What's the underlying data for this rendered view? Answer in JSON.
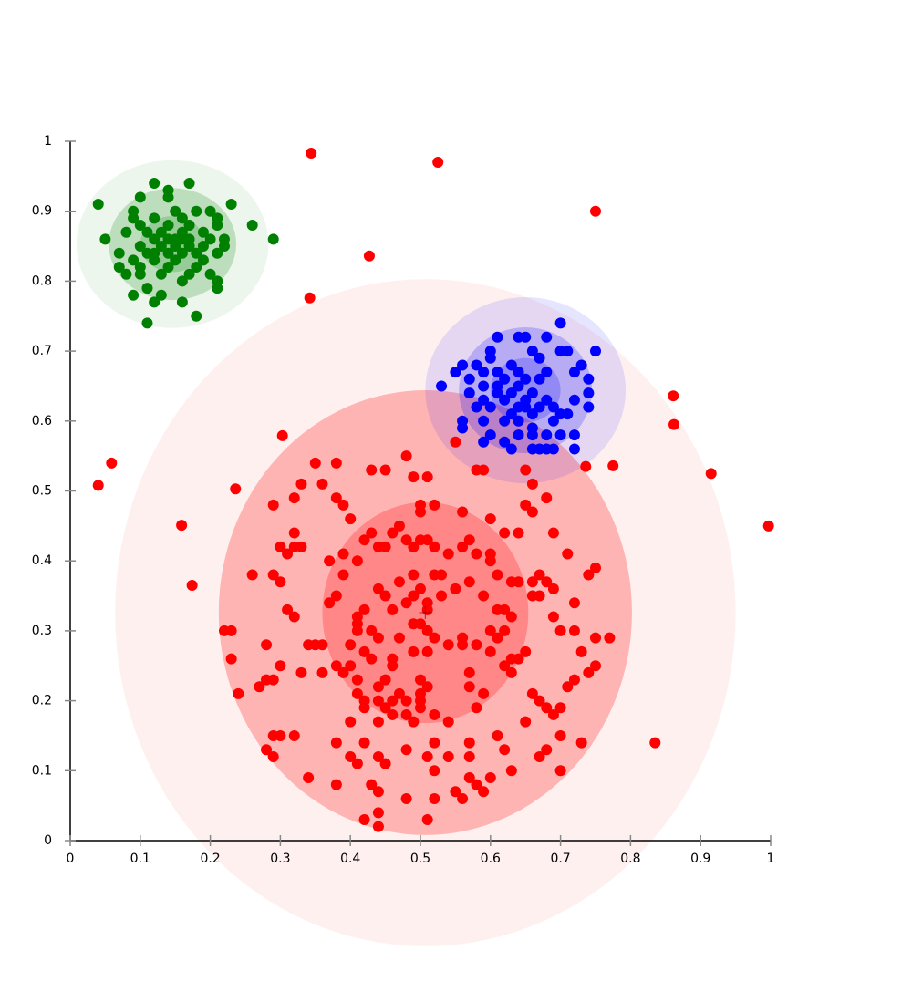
{
  "chart_data": {
    "type": "scatter",
    "xlim": [
      0,
      1
    ],
    "ylim": [
      0,
      1
    ],
    "xticks": [
      0,
      0.1,
      0.2,
      0.3,
      0.4,
      0.5,
      0.6,
      0.7,
      0.8,
      0.9,
      1
    ],
    "yticks": [
      0,
      0.1,
      0.2,
      0.3,
      0.4,
      0.5,
      0.6,
      0.7,
      0.8,
      0.9,
      1
    ],
    "series": [
      {
        "color": "#ff0000",
        "ellipses": {
          "center": [
            0.507,
            0.326
          ],
          "radii": [
            [
              0.147,
              0.158
            ],
            [
              0.295,
              0.318
            ],
            [
              0.443,
              0.477
            ]
          ],
          "opacity": [
            0.25,
            0.25,
            0.06
          ]
        },
        "x": [
          0.35,
          0.38,
          0.43,
          0.45,
          0.48,
          0.49,
          0.51,
          0.55,
          0.58,
          0.59,
          0.65,
          0.66,
          0.68,
          0.65,
          0.66,
          0.64,
          0.62,
          0.69,
          0.71,
          0.74,
          0.75,
          0.72,
          0.69,
          0.7,
          0.72,
          0.73,
          0.75,
          0.77,
          0.74,
          0.75,
          0.72,
          0.71,
          0.7,
          0.68,
          0.69,
          0.67,
          0.66,
          0.65,
          0.68,
          0.67,
          0.7,
          0.73,
          0.7,
          0.62,
          0.61,
          0.63,
          0.6,
          0.58,
          0.59,
          0.57,
          0.57,
          0.57,
          0.52,
          0.51,
          0.52,
          0.48,
          0.51,
          0.44,
          0.44,
          0.42,
          0.44,
          0.43,
          0.38,
          0.34,
          0.41,
          0.4,
          0.45,
          0.44,
          0.42,
          0.38,
          0.32,
          0.29,
          0.28,
          0.29,
          0.3,
          0.36,
          0.33,
          0.3,
          0.28,
          0.28,
          0.29,
          0.27,
          0.24,
          0.23,
          0.22,
          0.23,
          0.26,
          0.29,
          0.3,
          0.31,
          0.32,
          0.3,
          0.32,
          0.32,
          0.33,
          0.31,
          0.29,
          0.32,
          0.33,
          0.36,
          0.38,
          0.39,
          0.4,
          0.37,
          0.39,
          0.39,
          0.37,
          0.38,
          0.35,
          0.34,
          0.36,
          0.38,
          0.39,
          0.4,
          0.41,
          0.41,
          0.42,
          0.42,
          0.44,
          0.45,
          0.46,
          0.47,
          0.48,
          0.48,
          0.5,
          0.5,
          0.51,
          0.5,
          0.49,
          0.51,
          0.52,
          0.54,
          0.56,
          0.57,
          0.57,
          0.58,
          0.59,
          0.6,
          0.61,
          0.62,
          0.63,
          0.64,
          0.65,
          0.63,
          0.62,
          0.61,
          0.62,
          0.59,
          0.57,
          0.55,
          0.53,
          0.53,
          0.54,
          0.56,
          0.57,
          0.58,
          0.6,
          0.6,
          0.61,
          0.63,
          0.64,
          0.66,
          0.67,
          0.68,
          0.69,
          0.66,
          0.6,
          0.56,
          0.52,
          0.5,
          0.5,
          0.46,
          0.47,
          0.45,
          0.44,
          0.43,
          0.42,
          0.41,
          0.44,
          0.45,
          0.46,
          0.48,
          0.49,
          0.5,
          0.51,
          0.51,
          0.5,
          0.49,
          0.48,
          0.49,
          0.5,
          0.51,
          0.52,
          0.52,
          0.47,
          0.42,
          0.41,
          0.41,
          0.43,
          0.44,
          0.46,
          0.43,
          0.44,
          0.44,
          0.4,
          0.45,
          0.46,
          0.46,
          0.49,
          0.5,
          0.52,
          0.54,
          0.52,
          0.55,
          0.54,
          0.56,
          0.48,
          0.4,
          0.42,
          0.41,
          0.49,
          0.51,
          0.47,
          0.56,
          0.58,
          0.6,
          0.63,
          0.67,
          0.344,
          0.525,
          0.75,
          0.427,
          0.342,
          0.861,
          0.862,
          0.915,
          0.997,
          0.059,
          0.04,
          0.159,
          0.174,
          0.835,
          0.303,
          0.236,
          0.775,
          0.736
        ],
        "y": [
          0.54,
          0.54,
          0.53,
          0.53,
          0.55,
          0.52,
          0.52,
          0.57,
          0.53,
          0.53,
          0.53,
          0.51,
          0.49,
          0.48,
          0.47,
          0.44,
          0.44,
          0.44,
          0.41,
          0.38,
          0.39,
          0.34,
          0.32,
          0.3,
          0.3,
          0.27,
          0.29,
          0.29,
          0.24,
          0.25,
          0.23,
          0.22,
          0.19,
          0.19,
          0.18,
          0.2,
          0.21,
          0.17,
          0.13,
          0.12,
          0.15,
          0.14,
          0.1,
          0.13,
          0.15,
          0.1,
          0.09,
          0.08,
          0.07,
          0.09,
          0.12,
          0.14,
          0.14,
          0.12,
          0.06,
          0.06,
          0.03,
          0.04,
          0.02,
          0.03,
          0.07,
          0.08,
          0.08,
          0.09,
          0.11,
          0.12,
          0.11,
          0.12,
          0.14,
          0.14,
          0.15,
          0.15,
          0.13,
          0.12,
          0.15,
          0.24,
          0.24,
          0.25,
          0.23,
          0.28,
          0.23,
          0.22,
          0.21,
          0.26,
          0.3,
          0.3,
          0.38,
          0.38,
          0.37,
          0.33,
          0.32,
          0.42,
          0.42,
          0.44,
          0.42,
          0.41,
          0.48,
          0.49,
          0.51,
          0.51,
          0.49,
          0.48,
          0.46,
          0.4,
          0.41,
          0.38,
          0.34,
          0.35,
          0.28,
          0.28,
          0.28,
          0.25,
          0.24,
          0.25,
          0.23,
          0.21,
          0.2,
          0.19,
          0.22,
          0.23,
          0.25,
          0.21,
          0.2,
          0.18,
          0.19,
          0.21,
          0.22,
          0.23,
          0.27,
          0.27,
          0.29,
          0.28,
          0.29,
          0.24,
          0.22,
          0.19,
          0.21,
          0.27,
          0.29,
          0.3,
          0.26,
          0.26,
          0.27,
          0.24,
          0.25,
          0.33,
          0.33,
          0.35,
          0.37,
          0.36,
          0.35,
          0.38,
          0.41,
          0.42,
          0.43,
          0.41,
          0.4,
          0.41,
          0.38,
          0.37,
          0.37,
          0.37,
          0.38,
          0.37,
          0.36,
          0.35,
          0.46,
          0.47,
          0.48,
          0.47,
          0.48,
          0.44,
          0.45,
          0.42,
          0.42,
          0.44,
          0.43,
          0.4,
          0.36,
          0.35,
          0.33,
          0.34,
          0.31,
          0.31,
          0.3,
          0.33,
          0.36,
          0.38,
          0.43,
          0.42,
          0.43,
          0.43,
          0.42,
          0.38,
          0.37,
          0.33,
          0.31,
          0.3,
          0.3,
          0.29,
          0.26,
          0.26,
          0.2,
          0.17,
          0.17,
          0.19,
          0.18,
          0.2,
          0.17,
          0.2,
          0.18,
          0.17,
          0.1,
          0.07,
          0.12,
          0.06,
          0.13,
          0.28,
          0.27,
          0.32,
          0.35,
          0.34,
          0.29,
          0.28,
          0.28,
          0.3,
          0.32,
          0.35,
          0.983,
          0.97,
          0.9,
          0.836,
          0.776,
          0.636,
          0.595,
          0.525,
          0.45,
          0.54,
          0.508,
          0.451,
          0.365,
          0.14,
          0.579,
          0.503,
          0.536,
          0.535
        ]
      },
      {
        "color": "#0000ff",
        "ellipses": {
          "center": [
            0.65,
            0.644
          ],
          "radii": [
            [
              0.05,
              0.046
            ],
            [
              0.095,
              0.09
            ],
            [
              0.143,
              0.133
            ]
          ],
          "opacity": [
            0.2,
            0.2,
            0.1
          ]
        },
        "x": [
          0.7,
          0.68,
          0.64,
          0.65,
          0.61,
          0.6,
          0.6,
          0.66,
          0.67,
          0.7,
          0.71,
          0.75,
          0.56,
          0.58,
          0.59,
          0.61,
          0.63,
          0.64,
          0.68,
          0.72,
          0.73,
          0.55,
          0.57,
          0.59,
          0.62,
          0.65,
          0.67,
          0.74,
          0.53,
          0.57,
          0.59,
          0.61,
          0.63,
          0.64,
          0.66,
          0.68,
          0.72,
          0.74,
          0.58,
          0.6,
          0.62,
          0.64,
          0.65,
          0.67,
          0.69,
          0.71,
          0.74,
          0.56,
          0.59,
          0.62,
          0.64,
          0.66,
          0.69,
          0.7,
          0.56,
          0.64,
          0.66,
          0.68,
          0.7,
          0.72,
          0.6,
          0.59,
          0.62,
          0.66,
          0.67,
          0.68,
          0.69,
          0.72,
          0.63,
          0.65,
          0.63,
          0.61,
          0.66
        ],
        "y": [
          0.74,
          0.72,
          0.72,
          0.72,
          0.72,
          0.7,
          0.69,
          0.7,
          0.69,
          0.7,
          0.7,
          0.7,
          0.68,
          0.68,
          0.67,
          0.67,
          0.68,
          0.67,
          0.67,
          0.67,
          0.68,
          0.67,
          0.66,
          0.65,
          0.66,
          0.66,
          0.66,
          0.66,
          0.65,
          0.64,
          0.63,
          0.64,
          0.64,
          0.65,
          0.64,
          0.63,
          0.63,
          0.64,
          0.62,
          0.62,
          0.63,
          0.62,
          0.63,
          0.62,
          0.62,
          0.61,
          0.62,
          0.6,
          0.6,
          0.6,
          0.6,
          0.59,
          0.6,
          0.61,
          0.59,
          0.58,
          0.58,
          0.58,
          0.58,
          0.58,
          0.58,
          0.57,
          0.57,
          0.56,
          0.56,
          0.56,
          0.56,
          0.56,
          0.56,
          0.62,
          0.61,
          0.65,
          0.61
        ]
      },
      {
        "color": "#008000",
        "ellipses": {
          "center": [
            0.146,
            0.853
          ],
          "radii": [
            [
              0.046,
              0.04
            ],
            [
              0.091,
              0.08
            ],
            [
              0.137,
              0.12
            ]
          ],
          "opacity": [
            0.2,
            0.2,
            0.07
          ]
        },
        "x": [
          0.04,
          0.05,
          0.07,
          0.07,
          0.08,
          0.09,
          0.1,
          0.11,
          0.12,
          0.13,
          0.11,
          0.16,
          0.18,
          0.21,
          0.21,
          0.2,
          0.16,
          0.17,
          0.14,
          0.12,
          0.1,
          0.09,
          0.08,
          0.09,
          0.09,
          0.1,
          0.12,
          0.14,
          0.14,
          0.17,
          0.15,
          0.18,
          0.2,
          0.21,
          0.23,
          0.21,
          0.22,
          0.22,
          0.26,
          0.29,
          0.1,
          0.11,
          0.12,
          0.13,
          0.14,
          0.15,
          0.16,
          0.17,
          0.18,
          0.19,
          0.2,
          0.13,
          0.14,
          0.15,
          0.16,
          0.17,
          0.19,
          0.11,
          0.12,
          0.16,
          0.18,
          0.21,
          0.1,
          0.13,
          0.15,
          0.17,
          0.19,
          0.14,
          0.12,
          0.16
        ],
        "y": [
          0.91,
          0.86,
          0.84,
          0.82,
          0.81,
          0.78,
          0.81,
          0.79,
          0.77,
          0.78,
          0.74,
          0.77,
          0.75,
          0.79,
          0.8,
          0.81,
          0.8,
          0.81,
          0.82,
          0.83,
          0.82,
          0.83,
          0.87,
          0.89,
          0.9,
          0.92,
          0.94,
          0.92,
          0.93,
          0.94,
          0.9,
          0.9,
          0.9,
          0.89,
          0.91,
          0.88,
          0.86,
          0.85,
          0.88,
          0.86,
          0.88,
          0.87,
          0.86,
          0.85,
          0.84,
          0.86,
          0.87,
          0.85,
          0.84,
          0.83,
          0.86,
          0.87,
          0.88,
          0.83,
          0.84,
          0.88,
          0.87,
          0.84,
          0.89,
          0.89,
          0.82,
          0.84,
          0.85,
          0.81,
          0.85,
          0.86,
          0.85,
          0.86,
          0.84,
          0.86
        ]
      }
    ]
  }
}
